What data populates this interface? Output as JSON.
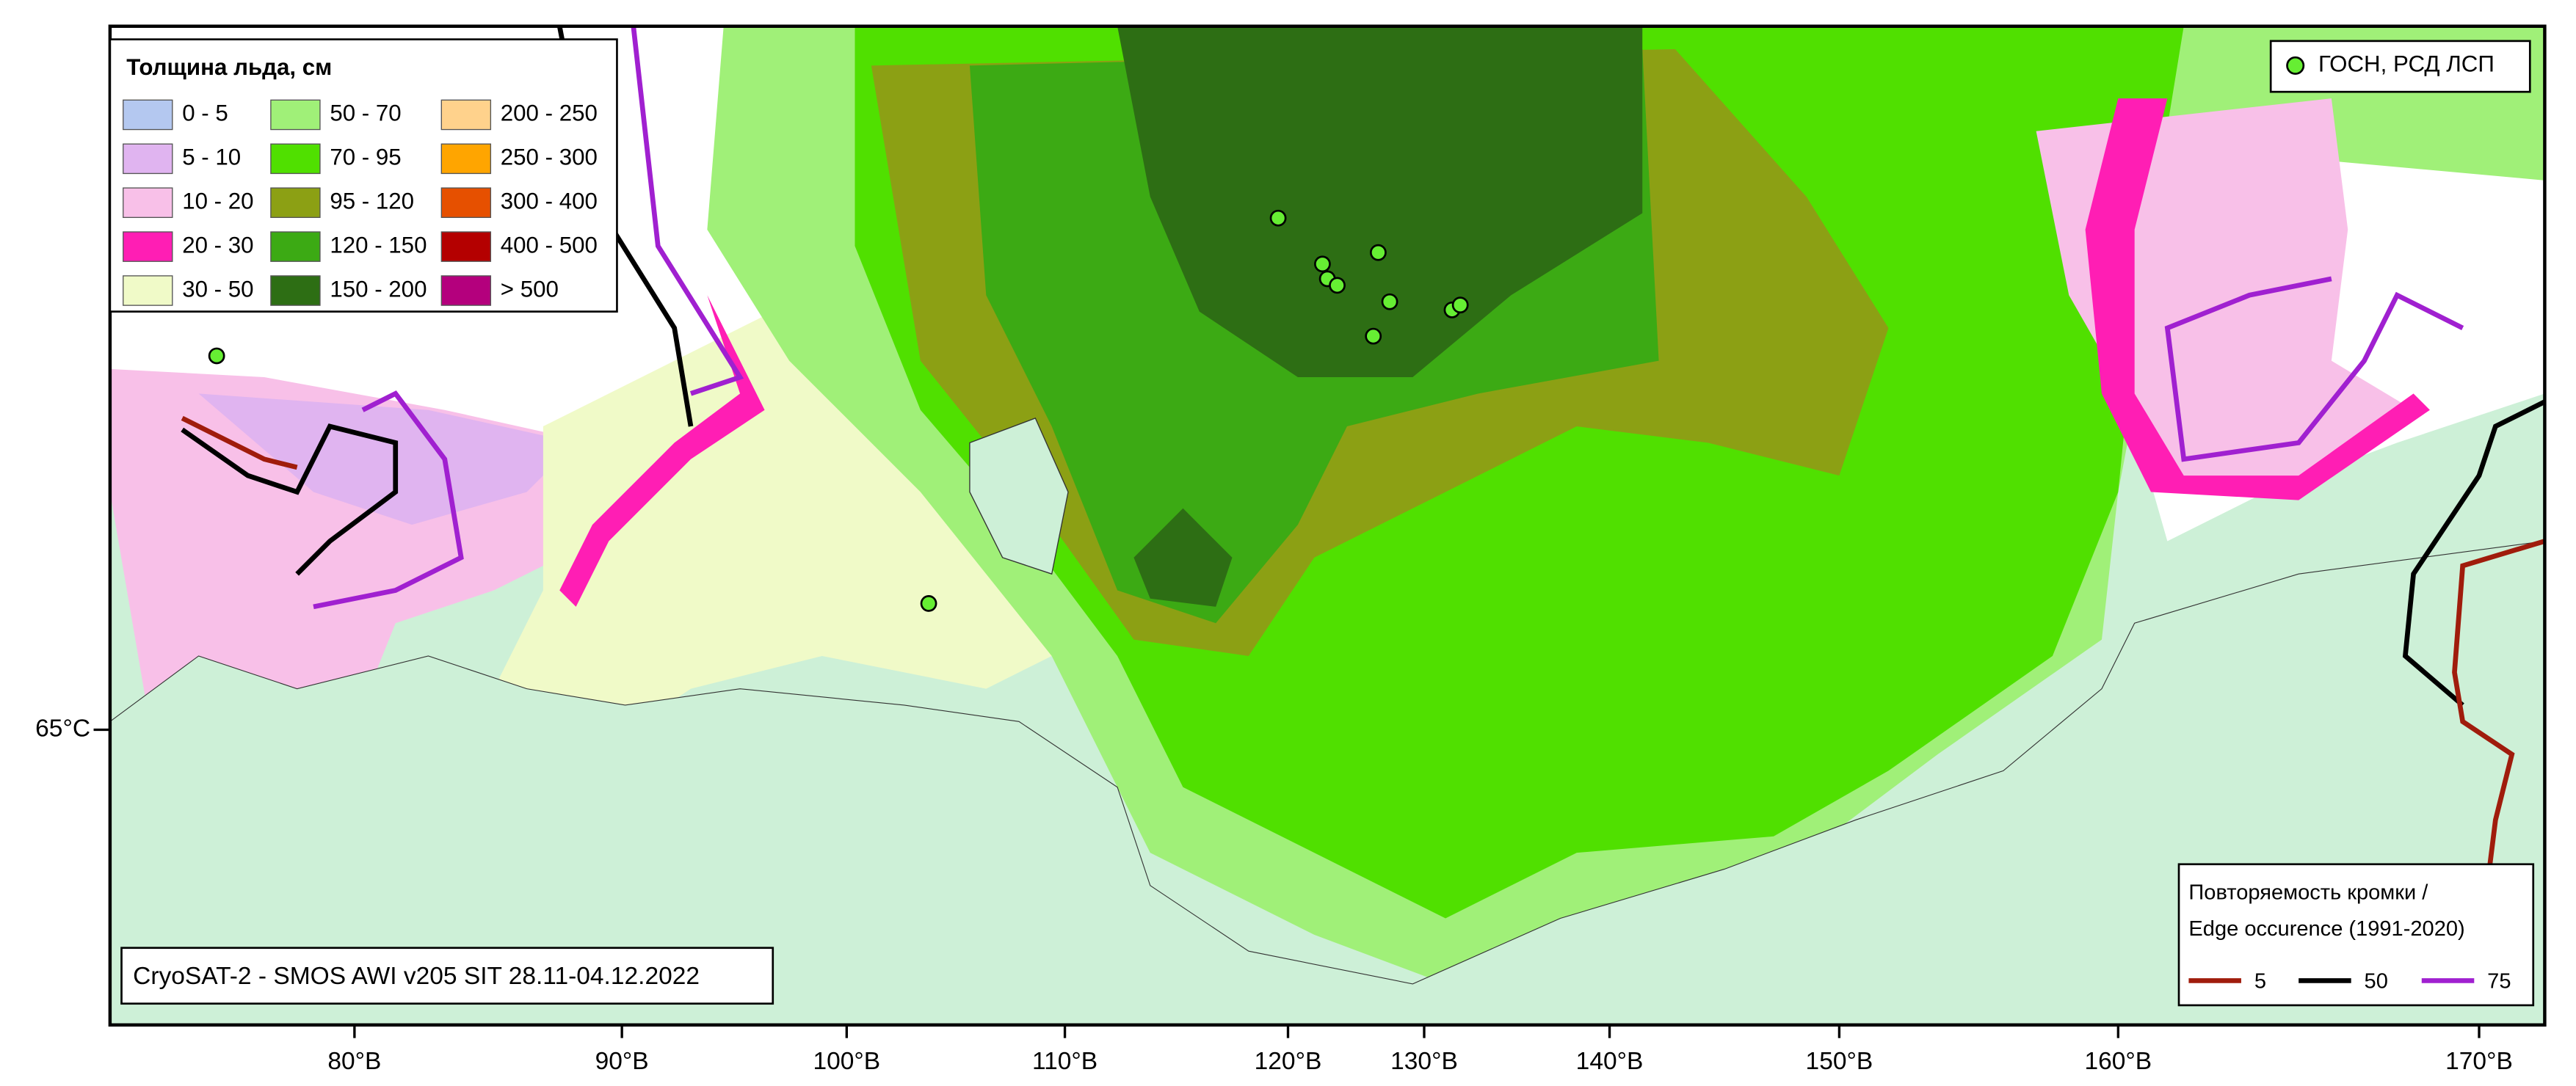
{
  "legend": {
    "title": "Толщина льда, см",
    "items": [
      {
        "label": "0 - 5",
        "color": "#b4c8f0"
      },
      {
        "label": "5 - 10",
        "color": "#e0b4f0"
      },
      {
        "label": "10 - 20",
        "color": "#f8c0e8"
      },
      {
        "label": "20 - 30",
        "color": "#ff1eb4"
      },
      {
        "label": "30 - 50",
        "color": "#f0fac8"
      },
      {
        "label": "50 - 70",
        "color": "#a0f078"
      },
      {
        "label": "70 - 95",
        "color": "#50e000"
      },
      {
        "label": "95 - 120",
        "color": "#8ca014"
      },
      {
        "label": "120 - 150",
        "color": "#3caa14"
      },
      {
        "label": "150 - 200",
        "color": "#2d6e14"
      },
      {
        "label": "200 - 250",
        "color": "#ffd28c"
      },
      {
        "label": "250 - 300",
        "color": "#ffa500"
      },
      {
        "label": "300 - 400",
        "color": "#e65000"
      },
      {
        "label": "400 - 500",
        "color": "#b40000"
      },
      {
        "label": "> 500",
        "color": "#b4007d"
      }
    ]
  },
  "stations_legend": {
    "label": "ГОСН, РСД ЛСП",
    "color": "#66ee33"
  },
  "edge_legend": {
    "title": [
      "Повторяемость кромки /",
      "Edge occurence (1991-2020)"
    ],
    "items": [
      {
        "label": "5",
        "color": "#a01c0c"
      },
      {
        "label": "50",
        "color": "#000000"
      },
      {
        "label": "75",
        "color": "#a020d0"
      }
    ]
  },
  "source": "CryoSAT-2 - SMOS AWI v205 SIT 28.11-04.12.2022",
  "axis": {
    "longitude_labels": [
      "80°В",
      "90°В",
      "100°В",
      "110°В",
      "120°В",
      "130°В",
      "140°В",
      "150°В",
      "160°В",
      "170°В"
    ],
    "latitude_labels": [
      "65°С"
    ]
  }
}
